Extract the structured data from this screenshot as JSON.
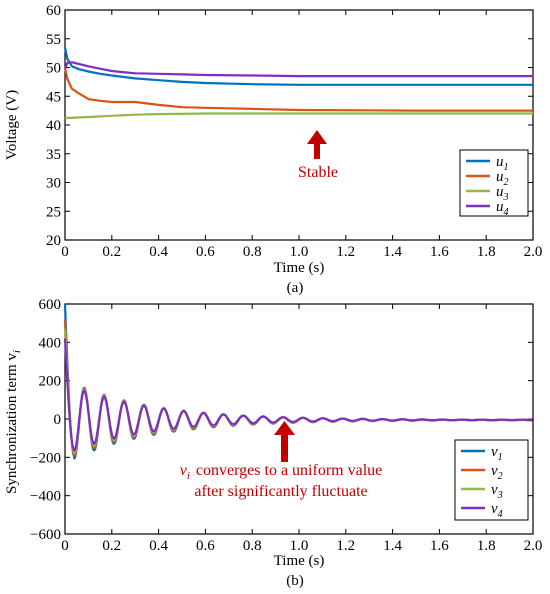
{
  "colors": {
    "blue": "#0072bd",
    "orange": "#d95319",
    "green": "#93b845",
    "purple": "#7e2fbf",
    "annotation": "#c00000"
  },
  "chart_data": [
    {
      "type": "line",
      "panel_label": "(a)",
      "xlabel": "Time (s)",
      "ylabel": "Voltage (V)",
      "xlim": [
        0,
        2.0
      ],
      "ylim": [
        20,
        60
      ],
      "xticks": [
        "0",
        "0.2",
        "0.4",
        "0.6",
        "0.8",
        "1.0",
        "1.2",
        "1.4",
        "1.6",
        "1.8",
        "2.0"
      ],
      "yticks": [
        "20",
        "25",
        "30",
        "35",
        "40",
        "45",
        "50",
        "55",
        "60"
      ],
      "legend_position": "bottom-right",
      "annotation": "Stable",
      "series": [
        {
          "name": "u",
          "sub": "1",
          "color": "#0072bd",
          "x": [
            0,
            0.01,
            0.03,
            0.06,
            0.1,
            0.15,
            0.2,
            0.3,
            0.4,
            0.5,
            0.6,
            0.8,
            1.0,
            1.5,
            2.0
          ],
          "y": [
            53.5,
            51.5,
            50.2,
            49.7,
            49.3,
            48.9,
            48.6,
            48.1,
            47.8,
            47.5,
            47.3,
            47.1,
            47.0,
            47.0,
            47.0
          ]
        },
        {
          "name": "u",
          "sub": "2",
          "color": "#d95319",
          "x": [
            0,
            0.01,
            0.03,
            0.06,
            0.1,
            0.15,
            0.2,
            0.3,
            0.4,
            0.5,
            0.6,
            0.7,
            0.8,
            1.0,
            1.5,
            2.0
          ],
          "y": [
            50.0,
            48.0,
            46.3,
            45.5,
            44.5,
            44.2,
            44.0,
            44.0,
            43.5,
            43.1,
            43.0,
            42.9,
            42.8,
            42.6,
            42.5,
            42.5
          ]
        },
        {
          "name": "u",
          "sub": "3",
          "color": "#93b845",
          "x": [
            0,
            0.1,
            0.2,
            0.3,
            0.4,
            0.6,
            0.8,
            1.0,
            1.5,
            2.0
          ],
          "y": [
            41.2,
            41.4,
            41.6,
            41.8,
            41.9,
            42.0,
            42.0,
            42.0,
            42.0,
            42.0
          ]
        },
        {
          "name": "u",
          "sub": "4",
          "color": "#7e2fbf",
          "x": [
            0,
            0.01,
            0.03,
            0.06,
            0.1,
            0.15,
            0.2,
            0.3,
            0.4,
            0.5,
            0.6,
            0.8,
            1.0,
            1.5,
            2.0
          ],
          "y": [
            49.8,
            50.8,
            50.9,
            50.6,
            50.2,
            49.8,
            49.4,
            49.0,
            48.9,
            48.8,
            48.7,
            48.6,
            48.5,
            48.5,
            48.5
          ]
        }
      ]
    },
    {
      "type": "line",
      "panel_label": "(b)",
      "xlabel": "Time (s)",
      "ylabel": "Synchronization term v",
      "ylabel_sub": "i",
      "xlim": [
        0,
        2.0
      ],
      "ylim": [
        -600,
        600
      ],
      "xticks": [
        "0",
        "0.2",
        "0.4",
        "0.6",
        "0.8",
        "1.0",
        "1.2",
        "1.4",
        "1.6",
        "1.8",
        "2.0"
      ],
      "yticks": [
        "600",
        "400",
        "200",
        "0",
        "−200",
        "−400",
        "−600"
      ],
      "legend_position": "bottom-right",
      "annotation_line1_var": "v",
      "annotation_line1_sub": "i",
      "annotation_line1": "converges to a uniform value",
      "annotation_line2": "after  significantly fluctuate",
      "oscillation": {
        "initial_values": [
          600,
          520,
          470,
          420
        ],
        "first_min": [
          -195,
          -185,
          -175,
          -165
        ],
        "period_s": 0.085,
        "decay_time_s": 0.35
      },
      "series": [
        {
          "name": "v",
          "sub": "1",
          "color": "#0072bd"
        },
        {
          "name": "v",
          "sub": "2",
          "color": "#d95319"
        },
        {
          "name": "v",
          "sub": "3",
          "color": "#93b845"
        },
        {
          "name": "v",
          "sub": "4",
          "color": "#7e2fbf"
        }
      ]
    }
  ]
}
